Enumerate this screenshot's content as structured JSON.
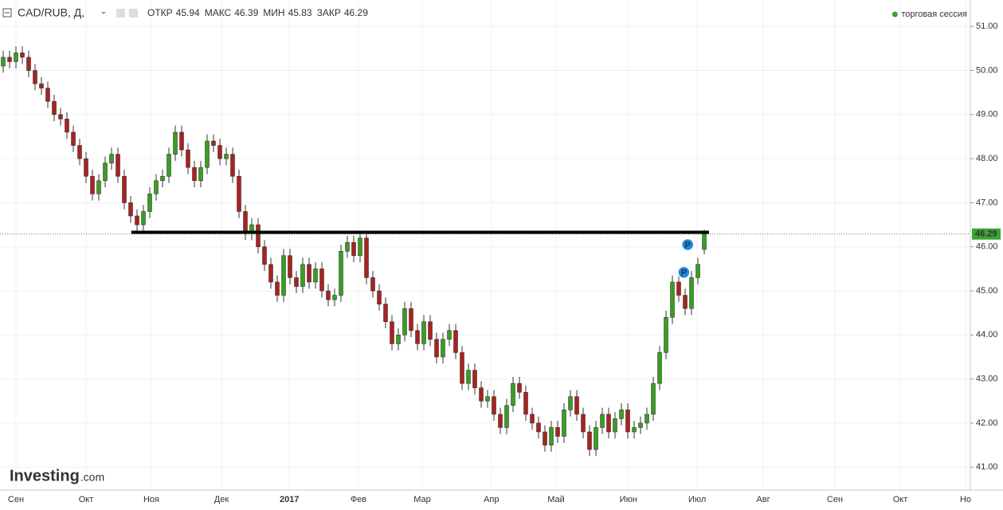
{
  "chart_data": {
    "type": "candlestick",
    "title": "CAD/RUB, Д,",
    "header_labels": [
      "ОТКР",
      "МАКС",
      "МИН",
      "ЗАКР"
    ],
    "legend": "торговая сессия",
    "up_color": "#3a9d23",
    "down_color": "#a8231f",
    "grid": true,
    "open": [
      50.1,
      50.3,
      50.2,
      50.4,
      50.3,
      50.0,
      49.7,
      49.6,
      49.3,
      49.0,
      48.9,
      48.6,
      48.3,
      48.0,
      47.6,
      47.2,
      47.5,
      47.9,
      48.1,
      47.6,
      47.0,
      46.7,
      46.5,
      46.8,
      47.2,
      47.5,
      47.6,
      48.1,
      48.6,
      48.2,
      47.8,
      47.5,
      47.8,
      48.4,
      48.3,
      48.0,
      48.1,
      47.6,
      46.8,
      46.3,
      46.5,
      46.0,
      45.6,
      45.2,
      44.9,
      45.8,
      45.3,
      45.1,
      45.6,
      45.2,
      45.5,
      45.0,
      44.8,
      44.9,
      45.9,
      46.1,
      45.8,
      46.2,
      45.3,
      45.0,
      44.7,
      44.3,
      43.8,
      44.0,
      44.6,
      44.1,
      43.8,
      44.3,
      43.9,
      43.5,
      43.9,
      44.1,
      43.6,
      42.9,
      43.2,
      42.8,
      42.5,
      42.6,
      42.2,
      41.9,
      42.4,
      42.9,
      42.7,
      42.2,
      42.0,
      41.8,
      41.5,
      41.9,
      41.7,
      42.3,
      42.6,
      42.2,
      41.8,
      41.4,
      41.9,
      42.2,
      41.8,
      42.1,
      42.3,
      41.8,
      41.9,
      42.0,
      42.2,
      42.9,
      43.6,
      44.4,
      45.2,
      44.9,
      44.6,
      45.3,
      45.94
    ],
    "high": [
      50.45,
      50.45,
      50.55,
      50.55,
      50.45,
      50.15,
      49.85,
      49.75,
      49.45,
      49.15,
      49.05,
      48.75,
      48.45,
      48.15,
      47.75,
      47.65,
      48.05,
      48.25,
      48.25,
      47.75,
      47.15,
      46.85,
      46.95,
      47.35,
      47.65,
      47.75,
      48.25,
      48.75,
      48.75,
      48.35,
      47.95,
      47.95,
      48.55,
      48.55,
      48.45,
      48.25,
      48.25,
      47.75,
      46.95,
      46.65,
      46.65,
      46.15,
      45.75,
      45.35,
      45.95,
      45.95,
      45.45,
      45.75,
      45.75,
      45.65,
      45.65,
      45.15,
      45.05,
      46.05,
      46.25,
      46.25,
      46.35,
      46.35,
      45.45,
      45.15,
      44.85,
      44.45,
      44.15,
      44.75,
      44.75,
      44.25,
      44.45,
      44.45,
      44.05,
      44.05,
      44.25,
      44.25,
      43.75,
      43.35,
      43.35,
      42.95,
      42.75,
      42.75,
      42.35,
      42.55,
      43.05,
      43.05,
      42.85,
      42.35,
      42.15,
      41.95,
      42.05,
      42.05,
      42.45,
      42.75,
      42.75,
      42.35,
      41.95,
      42.05,
      42.35,
      42.35,
      42.25,
      42.45,
      42.45,
      42.05,
      42.15,
      42.35,
      43.05,
      43.75,
      44.55,
      45.35,
      45.35,
      45.05,
      45.45,
      45.75,
      46.39
    ],
    "low": [
      49.95,
      50.05,
      50.05,
      50.15,
      49.85,
      49.55,
      49.45,
      49.15,
      48.85,
      48.75,
      48.45,
      48.15,
      47.85,
      47.45,
      47.05,
      47.05,
      47.35,
      47.75,
      47.45,
      46.85,
      46.55,
      46.35,
      46.35,
      46.65,
      47.05,
      47.35,
      47.45,
      47.95,
      48.05,
      47.65,
      47.35,
      47.35,
      47.65,
      48.15,
      47.85,
      47.85,
      47.45,
      46.65,
      46.15,
      46.15,
      45.85,
      45.45,
      45.05,
      44.75,
      44.75,
      45.15,
      44.95,
      44.95,
      45.05,
      45.05,
      44.85,
      44.65,
      44.65,
      44.75,
      45.75,
      45.65,
      45.65,
      45.15,
      44.85,
      44.55,
      44.15,
      43.65,
      43.65,
      43.85,
      43.95,
      43.65,
      43.65,
      43.75,
      43.35,
      43.35,
      43.75,
      43.45,
      42.75,
      42.75,
      42.65,
      42.35,
      42.35,
      42.05,
      41.75,
      41.75,
      42.25,
      42.55,
      42.05,
      41.85,
      41.65,
      41.35,
      41.35,
      41.55,
      41.55,
      42.15,
      42.05,
      41.65,
      41.25,
      41.25,
      41.75,
      41.65,
      41.65,
      41.95,
      41.65,
      41.65,
      41.75,
      41.85,
      42.05,
      42.75,
      43.45,
      44.25,
      44.75,
      44.45,
      44.45,
      45.15,
      45.83
    ],
    "close": [
      50.3,
      50.2,
      50.4,
      50.3,
      50.0,
      49.7,
      49.6,
      49.3,
      49.0,
      48.9,
      48.6,
      48.3,
      48.0,
      47.6,
      47.2,
      47.5,
      47.9,
      48.1,
      47.6,
      47.0,
      46.7,
      46.5,
      46.8,
      47.2,
      47.5,
      47.6,
      48.1,
      48.6,
      48.2,
      47.8,
      47.5,
      47.8,
      48.4,
      48.3,
      48.0,
      48.1,
      47.6,
      46.8,
      46.3,
      46.5,
      46.0,
      45.6,
      45.2,
      44.9,
      45.8,
      45.3,
      45.1,
      45.6,
      45.2,
      45.5,
      45.0,
      44.8,
      44.9,
      45.9,
      46.1,
      45.8,
      46.2,
      45.3,
      45.0,
      44.7,
      44.3,
      43.8,
      44.0,
      44.6,
      44.1,
      43.8,
      44.3,
      43.9,
      43.5,
      43.9,
      44.1,
      43.6,
      42.9,
      43.2,
      42.8,
      42.5,
      42.6,
      42.2,
      41.9,
      42.4,
      42.9,
      42.7,
      42.2,
      42.0,
      41.8,
      41.5,
      41.9,
      41.7,
      42.3,
      42.6,
      42.2,
      41.8,
      41.4,
      41.9,
      42.2,
      41.8,
      42.1,
      42.3,
      41.8,
      41.9,
      42.0,
      42.2,
      42.9,
      43.6,
      44.4,
      45.2,
      44.9,
      44.6,
      45.3,
      45.6,
      46.29
    ],
    "xlim": [
      -0.5,
      151.75
    ],
    "xticks": [
      {
        "value": 2,
        "label": "Сен"
      },
      {
        "value": 13,
        "label": "Окт"
      },
      {
        "value": 23.25,
        "label": "Ноя"
      },
      {
        "value": 34.25,
        "label": "Дек"
      },
      {
        "value": 44.9,
        "label": "2017"
      },
      {
        "value": 55.75,
        "label": "Фев"
      },
      {
        "value": 65.75,
        "label": "Мар"
      },
      {
        "value": 76.6,
        "label": "Апр"
      },
      {
        "value": 86.75,
        "label": "Май"
      },
      {
        "value": 98.1,
        "label": "Июн"
      },
      {
        "value": 108.9,
        "label": "Июл"
      },
      {
        "value": 119.25,
        "label": "Авг"
      },
      {
        "value": 130.5,
        "label": "Сен"
      },
      {
        "value": 140.75,
        "label": "Окт"
      },
      {
        "value": 151,
        "label": "Но"
      }
    ],
    "ylim": [
      40.48,
      51.6
    ],
    "yticks": [
      {
        "value": 41,
        "label": "41.00"
      },
      {
        "value": 42,
        "label": "42.00"
      },
      {
        "value": 43,
        "label": "43.00"
      },
      {
        "value": 44,
        "label": "44.00"
      },
      {
        "value": 45,
        "label": "45.00"
      },
      {
        "value": 46,
        "label": "46.00"
      },
      {
        "value": 47,
        "label": "47.00"
      },
      {
        "value": 48,
        "label": "48.00"
      },
      {
        "value": 49,
        "label": "49.00"
      },
      {
        "value": 50,
        "label": "50.00"
      },
      {
        "value": 51,
        "label": "51.00"
      }
    ],
    "level": {
      "y": 46.33,
      "x": [
        20.1,
        110.75
      ]
    },
    "events": [
      {
        "label": "P",
        "x": 107.4,
        "y": 46.05
      },
      {
        "label": "P",
        "x": 106.8,
        "y": 45.42
      }
    ],
    "watermark": [
      "Investing",
      ".com"
    ]
  }
}
